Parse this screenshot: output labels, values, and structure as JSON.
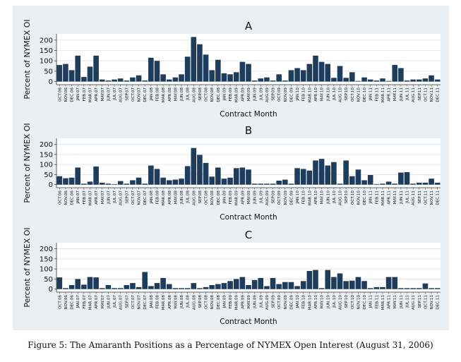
{
  "caption": "Figure 5: The Amaranth Positions as a Percentage of NYMEX Open Interest (August 31, 2006)",
  "colors": {
    "bar": "#1e3d5c",
    "panel_bg": "#e9eff3",
    "plot_bg": "#ffffff",
    "grid": "#dbe3ea"
  },
  "chart_data": [
    {
      "type": "bar",
      "title": "A",
      "xlabel": "Contract Month",
      "ylabel": "Percent of NYMEX OI",
      "ylim": [
        -15,
        230
      ],
      "yticks": [
        0,
        50,
        100,
        150,
        200
      ],
      "categories": [
        "OCT.06",
        "NOV.06",
        "DEC.06",
        "JAN.07",
        "FEB.07",
        "MAR.07",
        "APR.07",
        "MAY.07",
        "JUN.07",
        "JUL.07",
        "AUG.07",
        "SEP.07",
        "OCT.07",
        "NOV.07",
        "DEC.07",
        "JAN.08",
        "FEB.08",
        "MAR.08",
        "APR.08",
        "MAY.08",
        "JUN.08",
        "JUL.08",
        "AUG.08",
        "SEP.08",
        "OCT.08",
        "NOV.08",
        "DEC.08",
        "JAN.09",
        "FEB.09",
        "MAR.09",
        "APR.09",
        "MAY.09",
        "JUN.09",
        "JUL.09",
        "AUG.09",
        "SEP.09",
        "OCT.09",
        "NOV.09",
        "DEC.09",
        "JAN.10",
        "FEB.10",
        "MAR.10",
        "APR.10",
        "MAY.10",
        "JUN.10",
        "JUL.10",
        "AUG.10",
        "SEP.10",
        "OCT.10",
        "NOV.10",
        "DEC.10",
        "JAN.11",
        "FEB.11",
        "MAR.11",
        "APR.11",
        "MAY.11",
        "JUN.11",
        "JUL.11",
        "AUG.11",
        "SEP.11",
        "OCT.11",
        "NOV.11",
        "DEC.11"
      ],
      "values": [
        80,
        85,
        55,
        125,
        22,
        72,
        125,
        10,
        5,
        10,
        15,
        5,
        20,
        30,
        5,
        115,
        100,
        35,
        10,
        20,
        35,
        120,
        215,
        180,
        130,
        55,
        105,
        40,
        35,
        45,
        95,
        85,
        5,
        15,
        20,
        5,
        35,
        5,
        55,
        65,
        55,
        85,
        125,
        95,
        85,
        18,
        75,
        18,
        45,
        3,
        20,
        10,
        5,
        15,
        3,
        80,
        65,
        5,
        10,
        10,
        15,
        30,
        10
      ]
    },
    {
      "type": "bar",
      "title": "B",
      "xlabel": "Contract Month",
      "ylabel": "Percent of NYMEX OI",
      "ylim": [
        -15,
        230
      ],
      "yticks": [
        0,
        50,
        100,
        150,
        200
      ],
      "categories": [
        "OCT.06",
        "NOV.06",
        "DEC.06",
        "JAN.07",
        "FEB.07",
        "MAR.07",
        "APR.07",
        "MAY.07",
        "JUN.07",
        "JUL.07",
        "AUG.07",
        "SEP.07",
        "OCT.07",
        "NOV.07",
        "DEC.07",
        "JAN.08",
        "FEB.08",
        "MAR.08",
        "APR.08",
        "MAY.08",
        "JUN.08",
        "JUL.08",
        "AUG.08",
        "SEP.08",
        "OCT.08",
        "NOV.08",
        "DEC.08",
        "JAN.09",
        "FEB.09",
        "MAR.09",
        "APR.09",
        "MAY.09",
        "JUN.09",
        "JUL.09",
        "AUG.09",
        "SEP.09",
        "OCT.09",
        "NOV.09",
        "DEC.09",
        "JAN.10",
        "FEB.10",
        "MAR.10",
        "APR.10",
        "MAY.10",
        "JUN.10",
        "JUL.10",
        "AUG.10",
        "SEP.10",
        "OCT.10",
        "NOV.10",
        "DEC.10",
        "JAN.11",
        "FEB.11",
        "MAR.11",
        "APR.11",
        "MAY.11",
        "JUN.11",
        "JUL.11",
        "AUG.11",
        "SEP.11",
        "OCT.11",
        "NOV.11",
        "DEC.11"
      ],
      "values": [
        42,
        32,
        35,
        85,
        5,
        15,
        90,
        10,
        5,
        3,
        18,
        5,
        22,
        35,
        5,
        95,
        78,
        35,
        22,
        25,
        30,
        92,
        182,
        148,
        108,
        40,
        85,
        30,
        35,
        82,
        85,
        75,
        5,
        5,
        5,
        5,
        20,
        25,
        5,
        82,
        78,
        70,
        120,
        128,
        95,
        112,
        5,
        120,
        42,
        75,
        22,
        48,
        3,
        5,
        15,
        5,
        60,
        62,
        5,
        10,
        10,
        30,
        10
      ]
    },
    {
      "type": "bar",
      "title": "C",
      "xlabel": "Contract Month",
      "ylabel": "Percent of NYMEX OI",
      "ylim": [
        -15,
        230
      ],
      "yticks": [
        0,
        50,
        100,
        150,
        200
      ],
      "categories": [
        "OCT.06",
        "NOV.06",
        "DEC.06",
        "JAN.07",
        "FEB.07",
        "MAR.07",
        "APR.07",
        "MAY.07",
        "JUN.07",
        "JUL.07",
        "AUG.07",
        "SEP.07",
        "OCT.07",
        "NOV.07",
        "DEC.07",
        "JAN.08",
        "FEB.08",
        "MAR.08",
        "APR.08",
        "MAY.08",
        "JUN.08",
        "JUL.08",
        "AUG.08",
        "SEP.08",
        "OCT.08",
        "NOV.08",
        "DEC.08",
        "JAN.09",
        "FEB.09",
        "MAR.09",
        "APR.09",
        "MAY.09",
        "JUN.09",
        "JUL.09",
        "AUG.09",
        "SEP.09",
        "OCT.09",
        "NOV.09",
        "DEC.09",
        "JAN.10",
        "FEB.10",
        "MAR.10",
        "APR.10",
        "MAY.10",
        "JUN.10",
        "JUL.10",
        "AUG.10",
        "SEP.10",
        "OCT.10",
        "NOV.10",
        "DEC.10",
        "JAN.11",
        "FEB.11",
        "MAR.11",
        "APR.11",
        "MAY.11",
        "JUN.11",
        "JUL.11",
        "AUG.11",
        "SEP.11",
        "OCT.11",
        "NOV.11",
        "DEC.11"
      ],
      "values": [
        58,
        5,
        20,
        50,
        22,
        60,
        58,
        5,
        20,
        5,
        5,
        20,
        30,
        10,
        85,
        15,
        30,
        55,
        25,
        5,
        5,
        5,
        30,
        5,
        10,
        20,
        25,
        30,
        40,
        50,
        60,
        20,
        45,
        55,
        15,
        55,
        25,
        35,
        35,
        15,
        40,
        90,
        95,
        5,
        95,
        60,
        78,
        40,
        42,
        60,
        40,
        5,
        10,
        10,
        60,
        60,
        5,
        5,
        5,
        5,
        28,
        5,
        5
      ]
    }
  ]
}
